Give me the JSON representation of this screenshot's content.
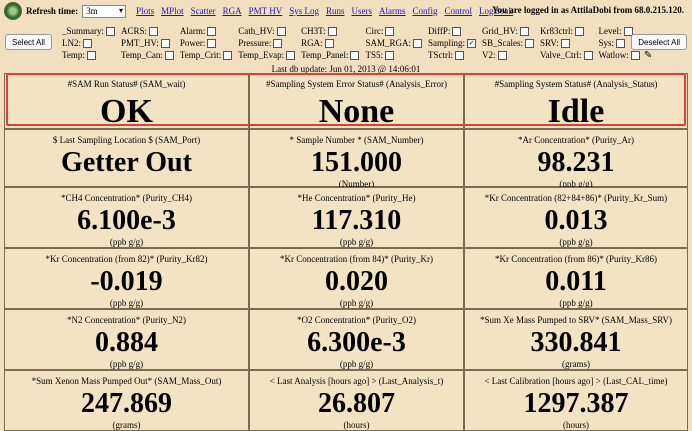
{
  "topbar": {
    "refresh_label": "Refresh time:",
    "refresh_value": "3m",
    "nav_links": [
      "Plots",
      "MPlot",
      "Scatter",
      "RGA",
      "PMT HV",
      "Sys Log",
      "Runs",
      "Users",
      "Alarms",
      "Config",
      "Control",
      "LogBook"
    ],
    "login_note": "You are logged in as AttilaDobi from 68.0.215.120."
  },
  "select_panel": {
    "select_all": "Select All",
    "deselect_all": "Deselect All",
    "checkboxes": [
      {
        "label": "_Summary:",
        "checked": false
      },
      {
        "label": "ACRS:",
        "checked": false
      },
      {
        "label": "Alarm:",
        "checked": false
      },
      {
        "label": "Cath_HV:",
        "checked": false
      },
      {
        "label": "CH3T:",
        "checked": false
      },
      {
        "label": "Circ:",
        "checked": false
      },
      {
        "label": "DiffP:",
        "checked": false
      },
      {
        "label": "Grid_HV:",
        "checked": false
      },
      {
        "label": "Kr83ctrl:",
        "checked": false
      },
      {
        "label": "Level:",
        "checked": false
      },
      {
        "label": "LN2:",
        "checked": false
      },
      {
        "label": "PMT_HV:",
        "checked": false
      },
      {
        "label": "Power:",
        "checked": false
      },
      {
        "label": "Pressure:",
        "checked": false
      },
      {
        "label": "RGA:",
        "checked": false
      },
      {
        "label": "SAM_RGA:",
        "checked": false
      },
      {
        "label": "Sampling:",
        "checked": true
      },
      {
        "label": "SB_Scales:",
        "checked": false
      },
      {
        "label": "SRV:",
        "checked": false
      },
      {
        "label": "Sys:",
        "checked": false
      },
      {
        "label": "Temp:",
        "checked": false
      },
      {
        "label": "Temp_Can:",
        "checked": false
      },
      {
        "label": "Temp_Crit:",
        "checked": false
      },
      {
        "label": "Temp_Evap:",
        "checked": false
      },
      {
        "label": "Temp_Panel:",
        "checked": false
      },
      {
        "label": "TS5:",
        "checked": false
      },
      {
        "label": "TSctrl:",
        "checked": false
      },
      {
        "label": "V2:",
        "checked": false
      },
      {
        "label": "Valve_Ctrl:",
        "checked": false
      },
      {
        "label": "Watlow:",
        "checked": false
      }
    ]
  },
  "update_line": "Last db update: Jun 01, 2013 @ 14:06:01",
  "cells": [
    {
      "label": "#SAM Run Status# (SAM_wait)",
      "value": "OK",
      "unit": ""
    },
    {
      "label": "#Sampling System Error Status# (Analysis_Error)",
      "value": "None",
      "unit": ""
    },
    {
      "label": "#Sampling System Status# (Analysis_Status)",
      "value": "Idle",
      "unit": ""
    },
    {
      "label": "$ Last Sampling Location $ (SAM_Port)",
      "value": "Getter Out",
      "unit": ""
    },
    {
      "label": "* Sample Number * (SAM_Number)",
      "value": "151.000",
      "unit": "(Number)"
    },
    {
      "label": "*Ar Concentration* (Purity_Ar)",
      "value": "98.231",
      "unit": "(ppb g/g)"
    },
    {
      "label": "*CH4 Concentration* (Purity_CH4)",
      "value": "6.100e-3",
      "unit": "(ppb g/g)"
    },
    {
      "label": "*He Concentration* (Purity_He)",
      "value": "117.310",
      "unit": "(ppb g/g)"
    },
    {
      "label": "*Kr Concentration (82+84+86)* (Purity_Kr_Sum)",
      "value": "0.013",
      "unit": "(ppb g/g)"
    },
    {
      "label": "*Kr Concentration (from 82)* (Purity_Kr82)",
      "value": "-0.019",
      "unit": "(ppb g/g)"
    },
    {
      "label": "*Kr Concentration (from 84)* (Purity_Kr)",
      "value": "0.020",
      "unit": "(ppb g/g)"
    },
    {
      "label": "*Kr Concentration (from 86)* (Purity_Kr86)",
      "value": "0.011",
      "unit": "(ppb g/g)"
    },
    {
      "label": "*N2 Concentration* (Purity_N2)",
      "value": "0.884",
      "unit": "(ppb g/g)"
    },
    {
      "label": "*O2 Concentration* (Purity_O2)",
      "value": "6.300e-3",
      "unit": "(ppb g/g)"
    },
    {
      "label": "*Sum Xe Mass Pumped to SRV* (SAM_Mass_SRV)",
      "value": "330.841",
      "unit": "(grams)"
    },
    {
      "label": "*Sum Xenon Mass Pumped Out* (SAM_Mass_Out)",
      "value": "247.869",
      "unit": "(grams)"
    },
    {
      "label": "< Last Analysis [hours ago] > (Last_Analysis_t)",
      "value": "26.807",
      "unit": "(hours)"
    },
    {
      "label": "< Last Calibration [hours ago] > (Last_CAL_time)",
      "value": "1297.387",
      "unit": "(hours)"
    }
  ],
  "colors": {
    "background": "#f2dfc0",
    "highlight": "#d9413a",
    "link": "#1a1aaa"
  }
}
